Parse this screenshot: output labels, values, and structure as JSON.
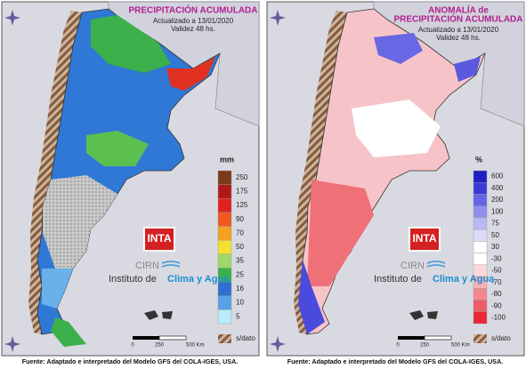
{
  "panels": [
    {
      "title": [
        "PRECIPITACIÓN ACUMULADA"
      ],
      "updated": "Actualizado a 13/01/2020",
      "validity": "Validez 48 hs.",
      "legend_unit": "mm",
      "legend": [
        "250",
        "175",
        "125",
        "90",
        "70",
        "50",
        "35",
        "25",
        "16",
        "10",
        "5"
      ],
      "no_data": "s/dato",
      "logo": "INTA",
      "org_short": "CIRN",
      "org": "Instituto de",
      "org_highlight": "Clima y Agua",
      "scale": [
        "0",
        "250",
        "500 Km"
      ],
      "footer": "Fuente: Adaptado e interpretado del Modelo GFS del COLA-IGES, USA."
    },
    {
      "title": [
        "ANOMALÍA de",
        "PRECIPITACIÓN ACUMULADA"
      ],
      "updated": "Actualizado a 13/01/2020",
      "validity": "Validez 48 hs.",
      "legend_unit": "%",
      "legend": [
        "600",
        "400",
        "200",
        "100",
        "75",
        "50",
        "30",
        "-30",
        "-50",
        "-70",
        "-80",
        "-90",
        "-100"
      ],
      "no_data": "s/dato",
      "logo": "INTA",
      "org_short": "CIRN",
      "org": "Instituto de",
      "org_highlight": "Clima y Agua",
      "scale": [
        "0",
        "250",
        "500 Km"
      ],
      "footer": "Fuente: Adaptado e interpretado del Modelo GFS del COLA-IGES, USA."
    }
  ]
}
